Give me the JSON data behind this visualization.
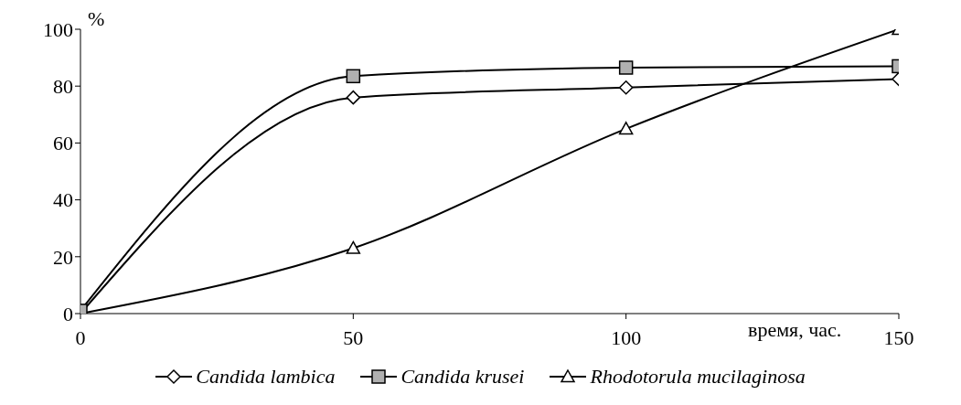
{
  "chart_data": {
    "type": "line",
    "xlabel": "время, час.",
    "ylabel": "%",
    "x": [
      0,
      50,
      100,
      150
    ],
    "series": [
      {
        "name": "Candida lambica",
        "color": "#000000",
        "marker": "diamond",
        "values": [
          0,
          76,
          79.5,
          82.5
        ]
      },
      {
        "name": "Candida krusei",
        "color": "#000000",
        "marker": "square",
        "values": [
          1,
          83.5,
          86.5,
          87
        ]
      },
      {
        "name": "Rhodotorula mucilaginosa",
        "color": "#000000",
        "marker": "triangle",
        "values": [
          0,
          23,
          65,
          100
        ]
      }
    ],
    "xlim": [
      0,
      150
    ],
    "xticks": [
      0,
      50,
      100,
      150
    ],
    "ylim": [
      0,
      100
    ],
    "yticks": [
      0,
      20,
      40,
      60,
      80,
      100
    ],
    "grid": false,
    "legend": "bottom",
    "line_style": "solid"
  }
}
